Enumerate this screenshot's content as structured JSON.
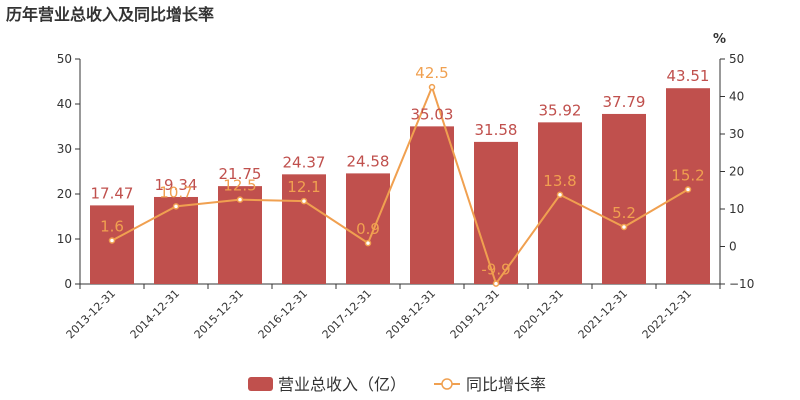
{
  "title": "历年营业总收入及同比增长率",
  "right_unit": "%",
  "colors": {
    "bar": "#c0504d",
    "line": "#f0a050",
    "axis": "#333333",
    "bar_label": "#c0504d",
    "line_label": "#f0a050"
  },
  "chart_data": {
    "type": "bar",
    "title": "历年营业总收入及同比增长率",
    "categories": [
      "2013-12-31",
      "2014-12-31",
      "2015-12-31",
      "2016-12-31",
      "2017-12-31",
      "2018-12-31",
      "2019-12-31",
      "2020-12-31",
      "2021-12-31",
      "2022-12-31"
    ],
    "series": [
      {
        "name": "营业总收入（亿）",
        "type": "bar",
        "axis": "left",
        "values": [
          17.47,
          19.34,
          21.75,
          24.37,
          24.58,
          35.03,
          31.58,
          35.92,
          37.79,
          43.51
        ],
        "labels": [
          "17.47",
          "19.34",
          "21.75",
          "24.37",
          "24.58",
          "35.03",
          "31.58",
          "35.92",
          "37.79",
          "43.51"
        ]
      },
      {
        "name": "同比增长率",
        "type": "line",
        "axis": "right",
        "values": [
          1.6,
          10.7,
          12.5,
          12.1,
          0.9,
          42.5,
          -9.9,
          13.8,
          5.2,
          15.2
        ],
        "labels": [
          "1.6",
          "10.7",
          "12.5",
          "12.1",
          "0.9",
          "42.5",
          "-9.9",
          "13.8",
          "5.2",
          "15.2"
        ]
      }
    ],
    "y_left": {
      "min": 0,
      "max": 50,
      "ticks": [
        "0",
        "10",
        "20",
        "30",
        "40",
        "50"
      ]
    },
    "y_right": {
      "min": -10,
      "max": 50,
      "ticks": [
        "−10",
        "0",
        "10",
        "20",
        "30",
        "40",
        "50"
      ],
      "unit": "%"
    },
    "grid": false,
    "legend": "bottom-center"
  }
}
